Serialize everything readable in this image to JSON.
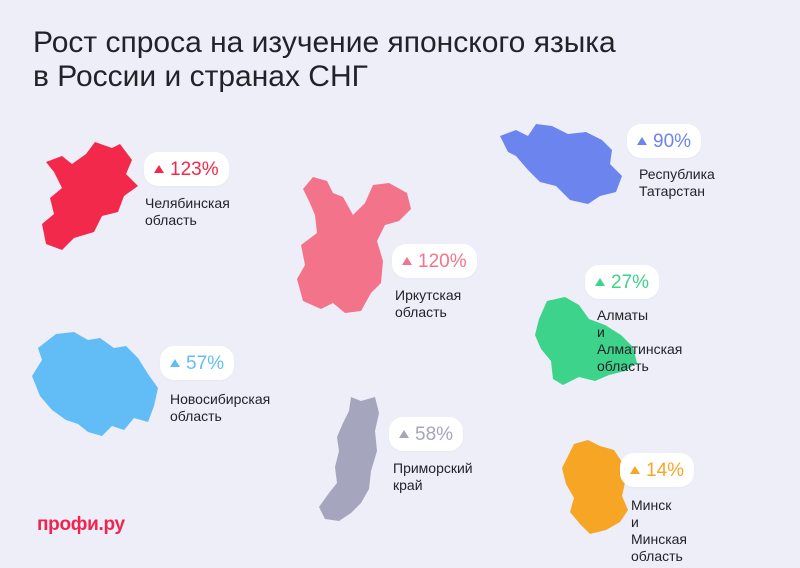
{
  "title": {
    "line1": "Рост спроса на изучение японского языка",
    "line2": "в России и странах СНГ"
  },
  "regions": [
    {
      "name_line1": "Челябинская",
      "name_line2": "область",
      "growth": "123%",
      "color": "#f2294b"
    },
    {
      "name_line1": "Иркутская",
      "name_line2": "область",
      "growth": "120%",
      "color": "#f2738a"
    },
    {
      "name_line1": "Республика",
      "name_line2": "Татарстан",
      "growth": "90%",
      "color": "#6b84ee"
    },
    {
      "name_line1": "Алматы",
      "name_line2": "и Алматинская область",
      "growth": "27%",
      "color": "#3ed38a"
    },
    {
      "name_line1": "Новосибирская",
      "name_line2": "область",
      "growth": "57%",
      "color": "#62bdf7"
    },
    {
      "name_line1": "Приморский",
      "name_line2": "край",
      "growth": "58%",
      "color": "#a5a5bd"
    },
    {
      "name_line1": "Минск",
      "name_line2": "и Минская область",
      "growth": "14%",
      "color": "#f7a524"
    }
  ],
  "logo": {
    "text": "профи.ру",
    "color": "#f0254f"
  }
}
